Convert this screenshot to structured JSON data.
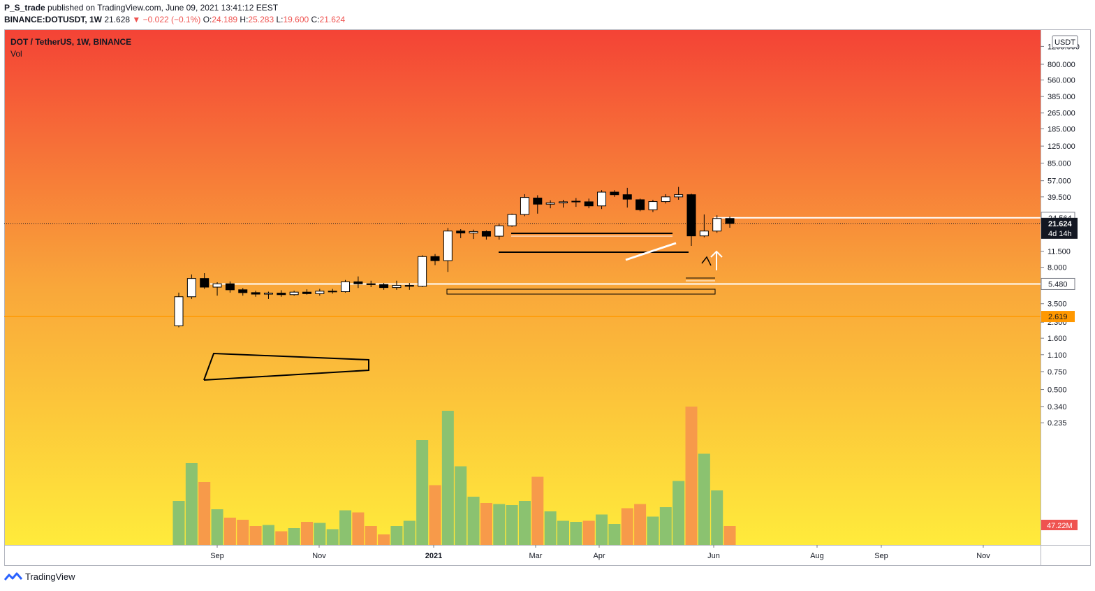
{
  "header": {
    "user": "P_S_trade",
    "published": "published on TradingView.com, June 09, 2021 13:41:12 EEST",
    "symbol": "BINANCE:DOTUSDT, 1W",
    "last": "21.628",
    "change": "−0.022 (−0.1%)",
    "open_label": "O:",
    "open": "24.189",
    "high_label": "H:",
    "high": "25.283",
    "low_label": "L:",
    "low": "19.600",
    "close_label": "C:",
    "close": "21.624"
  },
  "legend": {
    "title": "DOT / TetherUS, 1W, BINANCE",
    "vol": "Vol"
  },
  "footer": {
    "brand": "TradingView"
  },
  "colors": {
    "bg_top": "#f44336",
    "bg_mid": "#f9a73a",
    "bg_bottom": "#ffeb3b",
    "vol_up": "#8bc270",
    "vol_down": "#f79a4a",
    "candle_up": "#ffffff",
    "candle_down": "#000000",
    "orange_line": "#ff9800"
  },
  "chart_data": {
    "type": "candlestick",
    "scale": "log",
    "currency_badge": "USDT",
    "price_ticks": [
      "1200.000",
      "800.000",
      "560.000",
      "385.000",
      "265.000",
      "185.000",
      "125.000",
      "85.000",
      "57.000",
      "39.500",
      "24.564",
      "21.624",
      "11.500",
      "8.000",
      "5.480",
      "3.500",
      "2.619",
      "2.300",
      "1.600",
      "1.100",
      "0.750",
      "0.500",
      "0.340",
      "0.235"
    ],
    "x_labels": [
      "Sep",
      "Nov",
      "2021",
      "Mar",
      "Apr",
      "Jun",
      "Aug",
      "Sep",
      "Nov"
    ],
    "current_price": "21.624",
    "countdown": "4d 14h",
    "volume_badge": "47.22M",
    "price_labels": [
      {
        "value": "24.564",
        "style": "white"
      },
      {
        "value": "5.480",
        "style": "white"
      },
      {
        "value": "2.619",
        "style": "orange"
      }
    ],
    "candles": [
      {
        "o": 2.12,
        "h": 4.5,
        "l": 2.05,
        "c": 4.1
      },
      {
        "o": 4.1,
        "h": 6.8,
        "l": 3.9,
        "c": 6.2
      },
      {
        "o": 6.2,
        "h": 7.0,
        "l": 4.9,
        "c": 5.1
      },
      {
        "o": 5.1,
        "h": 5.7,
        "l": 4.2,
        "c": 5.5
      },
      {
        "o": 5.5,
        "h": 5.8,
        "l": 4.5,
        "c": 4.8
      },
      {
        "o": 4.8,
        "h": 5.0,
        "l": 4.2,
        "c": 4.5
      },
      {
        "o": 4.5,
        "h": 4.7,
        "l": 4.1,
        "c": 4.35
      },
      {
        "o": 4.35,
        "h": 4.6,
        "l": 3.9,
        "c": 4.45
      },
      {
        "o": 4.45,
        "h": 4.75,
        "l": 4.1,
        "c": 4.3
      },
      {
        "o": 4.3,
        "h": 4.7,
        "l": 4.2,
        "c": 4.55
      },
      {
        "o": 4.55,
        "h": 4.85,
        "l": 4.3,
        "c": 4.4
      },
      {
        "o": 4.4,
        "h": 4.9,
        "l": 4.2,
        "c": 4.65
      },
      {
        "o": 4.65,
        "h": 4.9,
        "l": 4.4,
        "c": 4.6
      },
      {
        "o": 4.6,
        "h": 6.0,
        "l": 4.5,
        "c": 5.75
      },
      {
        "o": 5.75,
        "h": 6.5,
        "l": 5.0,
        "c": 5.5
      },
      {
        "o": 5.5,
        "h": 5.9,
        "l": 5.1,
        "c": 5.4
      },
      {
        "o": 5.4,
        "h": 5.6,
        "l": 4.8,
        "c": 5.05
      },
      {
        "o": 5.05,
        "h": 5.9,
        "l": 4.8,
        "c": 5.3
      },
      {
        "o": 5.3,
        "h": 5.6,
        "l": 4.8,
        "c": 5.2
      },
      {
        "o": 5.2,
        "h": 10.5,
        "l": 5.1,
        "c": 10.2
      },
      {
        "o": 10.2,
        "h": 10.8,
        "l": 8.4,
        "c": 9.3
      },
      {
        "o": 9.3,
        "h": 19.5,
        "l": 7.2,
        "c": 18.2
      },
      {
        "o": 18.2,
        "h": 19.0,
        "l": 15.5,
        "c": 17.4
      },
      {
        "o": 17.4,
        "h": 18.8,
        "l": 15.2,
        "c": 18.0
      },
      {
        "o": 18.0,
        "h": 18.5,
        "l": 15.0,
        "c": 16.2
      },
      {
        "o": 16.2,
        "h": 21.5,
        "l": 15.0,
        "c": 20.5
      },
      {
        "o": 20.5,
        "h": 27.0,
        "l": 20.0,
        "c": 26.5
      },
      {
        "o": 26.5,
        "h": 42.0,
        "l": 25.5,
        "c": 39.0
      },
      {
        "o": 38.5,
        "h": 41.0,
        "l": 27.0,
        "c": 33.5
      },
      {
        "o": 33.5,
        "h": 36.5,
        "l": 30.5,
        "c": 34.5
      },
      {
        "o": 34.5,
        "h": 37.0,
        "l": 31.0,
        "c": 35.3
      },
      {
        "o": 35.3,
        "h": 38.5,
        "l": 31.5,
        "c": 35.8
      },
      {
        "o": 35.3,
        "h": 38.0,
        "l": 30.5,
        "c": 32.2
      },
      {
        "o": 32.2,
        "h": 46.0,
        "l": 30.0,
        "c": 44.0
      },
      {
        "o": 44.0,
        "h": 46.0,
        "l": 39.5,
        "c": 41.5
      },
      {
        "o": 41.5,
        "h": 48.5,
        "l": 31.0,
        "c": 37.5
      },
      {
        "o": 37.0,
        "h": 38.0,
        "l": 28.5,
        "c": 29.5
      },
      {
        "o": 29.5,
        "h": 37.0,
        "l": 28.0,
        "c": 35.5
      },
      {
        "o": 35.5,
        "h": 42.0,
        "l": 34.0,
        "c": 39.5
      },
      {
        "o": 39.5,
        "h": 49.5,
        "l": 37.0,
        "c": 41.5
      },
      {
        "o": 41.5,
        "h": 42.5,
        "l": 13.0,
        "c": 16.3
      },
      {
        "o": 16.3,
        "h": 26.5,
        "l": 15.8,
        "c": 18.2
      },
      {
        "o": 18.2,
        "h": 26.0,
        "l": 17.5,
        "c": 24.2
      },
      {
        "o": 24.2,
        "h": 25.3,
        "l": 19.6,
        "c": 21.6
      }
    ],
    "volume": [
      {
        "v": 0.42,
        "up": true
      },
      {
        "v": 0.78,
        "up": true
      },
      {
        "v": 0.6,
        "up": false
      },
      {
        "v": 0.34,
        "up": true
      },
      {
        "v": 0.26,
        "up": false
      },
      {
        "v": 0.24,
        "up": false
      },
      {
        "v": 0.18,
        "up": false
      },
      {
        "v": 0.19,
        "up": true
      },
      {
        "v": 0.13,
        "up": false
      },
      {
        "v": 0.16,
        "up": true
      },
      {
        "v": 0.22,
        "up": false
      },
      {
        "v": 0.21,
        "up": true
      },
      {
        "v": 0.15,
        "up": true
      },
      {
        "v": 0.33,
        "up": true
      },
      {
        "v": 0.31,
        "up": false
      },
      {
        "v": 0.18,
        "up": false
      },
      {
        "v": 0.1,
        "up": false
      },
      {
        "v": 0.18,
        "up": true
      },
      {
        "v": 0.23,
        "up": true
      },
      {
        "v": 1.0,
        "up": true
      },
      {
        "v": 0.57,
        "up": false
      },
      {
        "v": 1.28,
        "up": true
      },
      {
        "v": 0.75,
        "up": true
      },
      {
        "v": 0.46,
        "up": true
      },
      {
        "v": 0.4,
        "up": false
      },
      {
        "v": 0.39,
        "up": true
      },
      {
        "v": 0.38,
        "up": true
      },
      {
        "v": 0.42,
        "up": true
      },
      {
        "v": 0.65,
        "up": false
      },
      {
        "v": 0.32,
        "up": true
      },
      {
        "v": 0.23,
        "up": true
      },
      {
        "v": 0.22,
        "up": true
      },
      {
        "v": 0.23,
        "up": false
      },
      {
        "v": 0.29,
        "up": true
      },
      {
        "v": 0.2,
        "up": true
      },
      {
        "v": 0.35,
        "up": false
      },
      {
        "v": 0.39,
        "up": false
      },
      {
        "v": 0.27,
        "up": true
      },
      {
        "v": 0.36,
        "up": true
      },
      {
        "v": 0.61,
        "up": true
      },
      {
        "v": 1.32,
        "up": false
      },
      {
        "v": 0.87,
        "up": true
      },
      {
        "v": 0.52,
        "up": true
      },
      {
        "v": 0.18,
        "up": false
      }
    ]
  }
}
